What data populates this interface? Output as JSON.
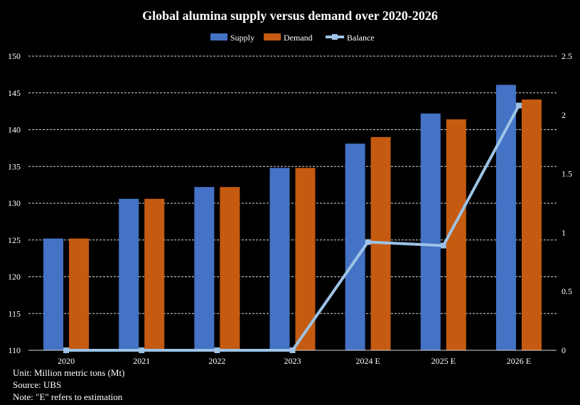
{
  "chart_data": {
    "type": "bar",
    "title": "Global alumina supply versus demand over 2020-2026",
    "categories": [
      "2020",
      "2021",
      "2022",
      "2023",
      "2024 E",
      "2025 E",
      "2026 E"
    ],
    "series": [
      {
        "name": "Supply",
        "kind": "bar",
        "axis": "left",
        "color": "#4472C4",
        "values": [
          125.2,
          130.6,
          132.2,
          134.8,
          138.1,
          142.2,
          146.1
        ]
      },
      {
        "name": "Demand",
        "kind": "bar",
        "axis": "left",
        "color": "#C55A11",
        "values": [
          125.2,
          130.6,
          132.2,
          134.8,
          139.0,
          141.4,
          144.1
        ]
      },
      {
        "name": "Balance",
        "kind": "line",
        "axis": "right",
        "color": "#9DC3E6",
        "values": [
          0,
          0,
          0,
          0,
          0.92,
          0.89,
          2.08
        ]
      }
    ],
    "y_left": {
      "min": 110,
      "max": 150,
      "ticks": [
        "110",
        "115",
        "120",
        "125",
        "130",
        "135",
        "140",
        "145",
        "150"
      ]
    },
    "y_right": {
      "min": 0,
      "max": 2.5,
      "ticks": [
        "0",
        "0.5",
        "1",
        "1.5",
        "2",
        "2.5"
      ]
    },
    "legend_position": "top"
  },
  "notes": {
    "unit": "Unit: Million metric tons (Mt)",
    "source": "Source: UBS",
    "note": "Note: \"E\" refers to estimation"
  }
}
